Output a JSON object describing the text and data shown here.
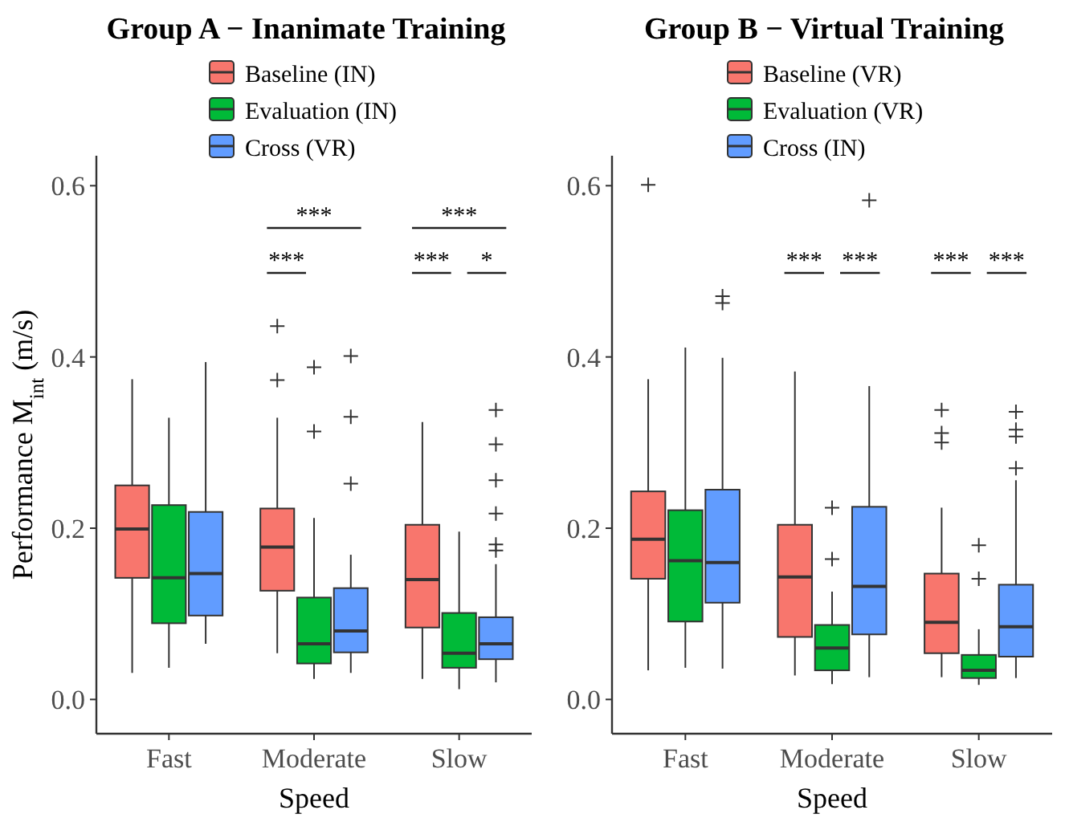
{
  "chart_data": [
    {
      "type": "box",
      "title": "Group A − Inanimate Training",
      "xlabel": "Speed",
      "ylabel": "Performance M$_{int}$ (m/s)",
      "categories": [
        "Fast",
        "Moderate",
        "Slow"
      ],
      "ylim": [
        -0.04,
        0.635
      ],
      "yticks": [
        {
          "value": 0,
          "label": "0.0"
        },
        {
          "value": 0.2,
          "label": "0.2"
        },
        {
          "value": 0.4,
          "label": "0.4"
        },
        {
          "value": 0.6,
          "label": "0.6"
        }
      ],
      "legend": "top",
      "marker": "cross",
      "series": [
        {
          "name": "Baseline (IN)",
          "color": "#f8766d",
          "boxes": [
            {
              "low": 0.031,
              "q1": 0.142,
              "median": 0.199,
              "q3": 0.25,
              "high": 0.374
            },
            {
              "low": 0.054,
              "q1": 0.127,
              "median": 0.178,
              "q3": 0.223,
              "high": 0.329,
              "outliers": [
                0.436,
                0.373
              ]
            },
            {
              "low": 0.024,
              "q1": 0.084,
              "median": 0.14,
              "q3": 0.204,
              "high": 0.324
            }
          ]
        },
        {
          "name": "Evaluation (IN)",
          "color": "#00ba38",
          "boxes": [
            {
              "low": 0.037,
              "q1": 0.089,
              "median": 0.142,
              "q3": 0.227,
              "high": 0.329
            },
            {
              "low": 0.024,
              "q1": 0.042,
              "median": 0.065,
              "q3": 0.119,
              "high": 0.212,
              "outliers": [
                0.388,
                0.313
              ]
            },
            {
              "low": 0.012,
              "q1": 0.037,
              "median": 0.054,
              "q3": 0.101,
              "high": 0.196
            }
          ]
        },
        {
          "name": "Cross (VR)",
          "color": "#619cff",
          "boxes": [
            {
              "low": 0.065,
              "q1": 0.098,
              "median": 0.147,
              "q3": 0.219,
              "high": 0.394
            },
            {
              "low": 0.031,
              "q1": 0.055,
              "median": 0.08,
              "q3": 0.13,
              "high": 0.169,
              "outliers": [
                0.401,
                0.33,
                0.252
              ]
            },
            {
              "low": 0.02,
              "q1": 0.047,
              "median": 0.065,
              "q3": 0.096,
              "high": 0.158,
              "outliers": [
                0.338,
                0.298,
                0.256,
                0.217,
                0.181,
                0.174
              ]
            }
          ]
        }
      ],
      "annotations": [
        "***",
        "***",
        "***",
        "***",
        "*"
      ]
    },
    {
      "type": "box",
      "title": "Group B − Virtual Training",
      "xlabel": "Speed",
      "categories": [
        "Fast",
        "Moderate",
        "Slow"
      ],
      "ylim": [
        -0.04,
        0.635
      ],
      "yticks": [
        {
          "value": 0,
          "label": "0.0"
        },
        {
          "value": 0.2,
          "label": "0.2"
        },
        {
          "value": 0.4,
          "label": "0.4"
        },
        {
          "value": 0.6,
          "label": "0.6"
        }
      ],
      "legend": "top",
      "marker": "cross",
      "series": [
        {
          "name": "Baseline (VR)",
          "color": "#f8766d",
          "boxes": [
            {
              "low": 0.034,
              "q1": 0.141,
              "median": 0.187,
              "q3": 0.243,
              "high": 0.374,
              "outliers": [
                0.601
              ]
            },
            {
              "low": 0.028,
              "q1": 0.073,
              "median": 0.143,
              "q3": 0.204,
              "high": 0.383
            },
            {
              "low": 0.026,
              "q1": 0.054,
              "median": 0.09,
              "q3": 0.147,
              "high": 0.224,
              "outliers": [
                0.338,
                0.311,
                0.3
              ]
            }
          ]
        },
        {
          "name": "Evaluation (VR)",
          "color": "#00ba38",
          "boxes": [
            {
              "low": 0.037,
              "q1": 0.091,
              "median": 0.162,
              "q3": 0.221,
              "high": 0.411
            },
            {
              "low": 0.018,
              "q1": 0.034,
              "median": 0.06,
              "q3": 0.087,
              "high": 0.126,
              "outliers": [
                0.224,
                0.164
              ]
            },
            {
              "low": 0.017,
              "q1": 0.025,
              "median": 0.034,
              "q3": 0.052,
              "high": 0.082,
              "outliers": [
                0.18,
                0.141
              ]
            }
          ]
        },
        {
          "name": "Cross (IN)",
          "color": "#619cff",
          "boxes": [
            {
              "low": 0.036,
              "q1": 0.113,
              "median": 0.16,
              "q3": 0.245,
              "high": 0.399,
              "outliers": [
                0.471,
                0.463
              ]
            },
            {
              "low": 0.026,
              "q1": 0.076,
              "median": 0.132,
              "q3": 0.225,
              "high": 0.366,
              "outliers": [
                0.583
              ]
            },
            {
              "low": 0.025,
              "q1": 0.05,
              "median": 0.085,
              "q3": 0.134,
              "high": 0.256,
              "outliers": [
                0.336,
                0.315,
                0.307,
                0.27
              ]
            }
          ]
        }
      ],
      "annotations": [
        "***",
        "***",
        "***",
        "***"
      ]
    }
  ]
}
